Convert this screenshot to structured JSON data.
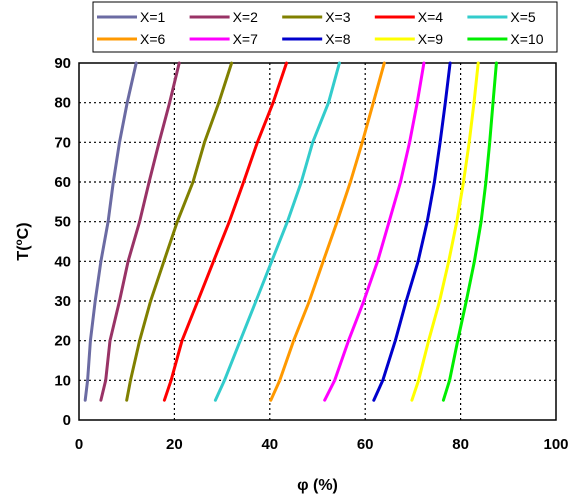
{
  "chart_data": {
    "type": "line",
    "xlabel": "φ (%)",
    "ylabel": "T(°C)",
    "ylabel_parts": {
      "letter": "T",
      "open": "(",
      "degree": "o",
      "unit": "C)"
    },
    "xlim": [
      0,
      100
    ],
    "ylim": [
      0,
      90
    ],
    "x_ticks": [
      "0",
      "20",
      "40",
      "60",
      "80",
      "100"
    ],
    "y_ticks": [
      "0",
      "10",
      "20",
      "30",
      "40",
      "50",
      "60",
      "70",
      "80",
      "90"
    ],
    "grid": "dotted",
    "legend_position": "top",
    "series": [
      {
        "name": "X=1",
        "color": "#6b6ba3",
        "points": [
          [
            1.3,
            5
          ],
          [
            1.8,
            10
          ],
          [
            2.4,
            20
          ],
          [
            3.4,
            30
          ],
          [
            4.6,
            40
          ],
          [
            6.1,
            50
          ],
          [
            7.2,
            60
          ],
          [
            8.5,
            70
          ],
          [
            10.1,
            80
          ],
          [
            12,
            90
          ]
        ]
      },
      {
        "name": "X=2",
        "color": "#993366",
        "points": [
          [
            4.6,
            5
          ],
          [
            5.6,
            10
          ],
          [
            6.5,
            20
          ],
          [
            8.5,
            30
          ],
          [
            10.3,
            40
          ],
          [
            12.7,
            50
          ],
          [
            14.7,
            60
          ],
          [
            16.8,
            70
          ],
          [
            19,
            80
          ],
          [
            21,
            90
          ]
        ]
      },
      {
        "name": "X=3",
        "color": "#808000",
        "points": [
          [
            10,
            5
          ],
          [
            10.8,
            10
          ],
          [
            12.7,
            20
          ],
          [
            15,
            30
          ],
          [
            17.8,
            40
          ],
          [
            20.6,
            50
          ],
          [
            23.9,
            60
          ],
          [
            26.3,
            70
          ],
          [
            29.3,
            80
          ],
          [
            32,
            90
          ]
        ]
      },
      {
        "name": "X=4",
        "color": "#ff0000",
        "points": [
          [
            17.9,
            5
          ],
          [
            19.3,
            10
          ],
          [
            21.6,
            20
          ],
          [
            24.9,
            30
          ],
          [
            28.2,
            40
          ],
          [
            31.5,
            50
          ],
          [
            34.5,
            60
          ],
          [
            37.4,
            70
          ],
          [
            40.7,
            80
          ],
          [
            43.5,
            90
          ]
        ]
      },
      {
        "name": "X=5",
        "color": "#33cccc",
        "points": [
          [
            28.6,
            5
          ],
          [
            30.5,
            10
          ],
          [
            33.8,
            20
          ],
          [
            37.1,
            30
          ],
          [
            40.4,
            40
          ],
          [
            43.7,
            50
          ],
          [
            46.6,
            60
          ],
          [
            49,
            70
          ],
          [
            52.3,
            80
          ],
          [
            54.6,
            90
          ]
        ]
      },
      {
        "name": "X=6",
        "color": "#ff9900",
        "points": [
          [
            40.2,
            5
          ],
          [
            42.1,
            10
          ],
          [
            45,
            20
          ],
          [
            48.3,
            30
          ],
          [
            51.2,
            40
          ],
          [
            54.1,
            50
          ],
          [
            56.9,
            60
          ],
          [
            59.4,
            70
          ],
          [
            61.7,
            80
          ],
          [
            64,
            90
          ]
        ]
      },
      {
        "name": "X=7",
        "color": "#ff00ff",
        "points": [
          [
            51.5,
            5
          ],
          [
            53.6,
            10
          ],
          [
            56.5,
            20
          ],
          [
            59.7,
            30
          ],
          [
            62.6,
            40
          ],
          [
            65,
            50
          ],
          [
            67.4,
            60
          ],
          [
            69.3,
            70
          ],
          [
            70.9,
            80
          ],
          [
            72.3,
            90
          ]
        ]
      },
      {
        "name": "X=8",
        "color": "#0000cc",
        "points": [
          [
            61.8,
            5
          ],
          [
            63.7,
            10
          ],
          [
            66.3,
            20
          ],
          [
            68.6,
            30
          ],
          [
            71.1,
            40
          ],
          [
            73,
            50
          ],
          [
            74.5,
            60
          ],
          [
            75.7,
            70
          ],
          [
            76.8,
            80
          ],
          [
            77.8,
            90
          ]
        ]
      },
      {
        "name": "X=9",
        "color": "#ffff00",
        "points": [
          [
            69.8,
            5
          ],
          [
            71.2,
            10
          ],
          [
            73.3,
            20
          ],
          [
            75.6,
            30
          ],
          [
            77.5,
            40
          ],
          [
            79.2,
            50
          ],
          [
            80.6,
            60
          ],
          [
            81.8,
            70
          ],
          [
            82.8,
            80
          ],
          [
            83.7,
            90
          ]
        ]
      },
      {
        "name": "X=10",
        "color": "#00ee00",
        "points": [
          [
            76.4,
            5
          ],
          [
            77.7,
            10
          ],
          [
            79.4,
            20
          ],
          [
            81.2,
            30
          ],
          [
            82.9,
            40
          ],
          [
            84.3,
            50
          ],
          [
            85.3,
            60
          ],
          [
            86.1,
            70
          ],
          [
            86.8,
            80
          ],
          [
            87.5,
            90
          ]
        ]
      }
    ]
  }
}
